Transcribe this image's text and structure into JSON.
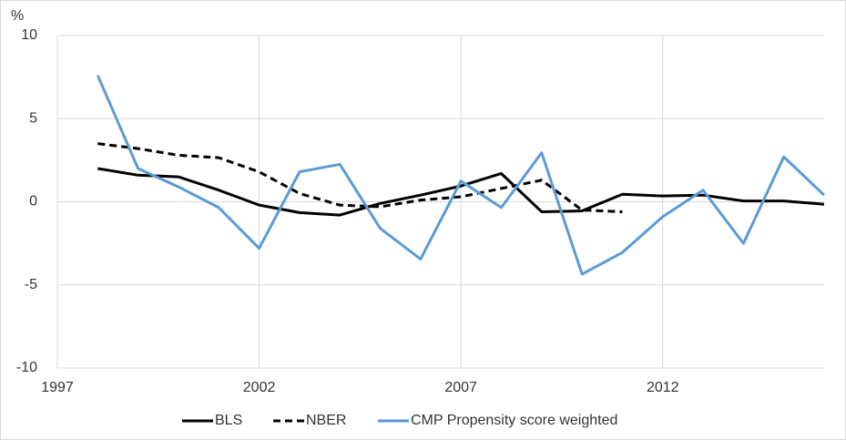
{
  "chart_data": {
    "type": "line",
    "y_label": "%",
    "x": [
      1998,
      1999,
      2000,
      2001,
      2002,
      2003,
      2004,
      2005,
      2006,
      2007,
      2008,
      2009,
      2010,
      2011,
      2012,
      2013,
      2014,
      2015,
      2016
    ],
    "series": [
      {
        "name": "BLS",
        "color": "#000000",
        "dashed": false,
        "values": [
          2.0,
          1.6,
          1.5,
          0.7,
          -0.2,
          -0.65,
          -0.8,
          -0.1,
          0.4,
          0.95,
          1.7,
          -0.6,
          -0.55,
          0.45,
          0.35,
          0.4,
          0.05,
          0.05,
          -0.15
        ]
      },
      {
        "name": "NBER",
        "color": "#000000",
        "dashed": true,
        "values": [
          3.5,
          3.2,
          2.8,
          2.65,
          1.8,
          0.5,
          -0.2,
          -0.3,
          0.1,
          0.3,
          0.8,
          1.3,
          -0.5,
          -0.6,
          null,
          null,
          null,
          null,
          null
        ]
      },
      {
        "name": "CMP Propensity score weighted",
        "color": "#5b9bd5",
        "dashed": false,
        "values": [
          7.6,
          2.0,
          0.9,
          -0.35,
          -2.8,
          1.8,
          2.25,
          -1.6,
          -3.45,
          1.25,
          -0.35,
          2.95,
          -4.35,
          -3.05,
          -0.9,
          0.7,
          -2.5,
          2.7,
          0.4
        ]
      }
    ],
    "xlim": [
      1997,
      2016
    ],
    "xticks": [
      1997,
      2002,
      2007,
      2012
    ],
    "ylim": [
      -10,
      10
    ],
    "yticks": [
      10,
      5,
      0,
      -5,
      -10
    ],
    "grid": true,
    "legend": "bottom"
  }
}
